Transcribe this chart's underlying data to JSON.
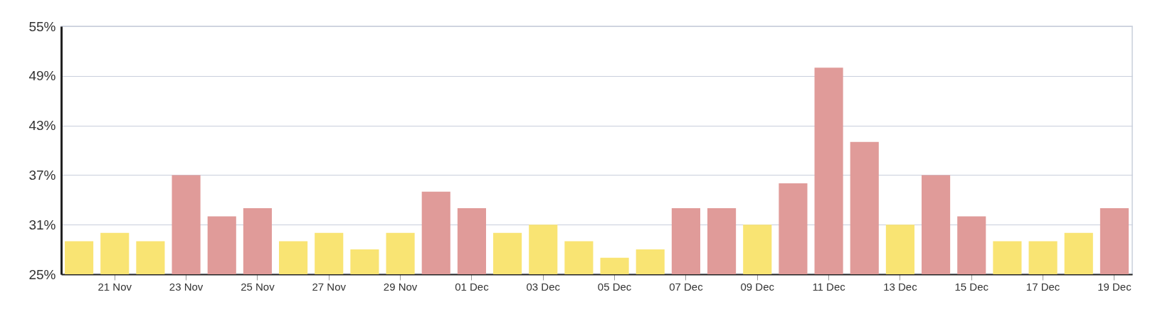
{
  "chart_data": {
    "type": "bar",
    "categories": [
      null,
      "21 Nov",
      null,
      "23 Nov",
      null,
      "25 Nov",
      null,
      "27 Nov",
      null,
      "29 Nov",
      null,
      "01 Dec",
      null,
      "03 Dec",
      null,
      "05 Dec",
      null,
      "07 Dec",
      null,
      "09 Dec",
      null,
      "11 Dec",
      null,
      "13 Dec",
      null,
      "15 Dec",
      null,
      "17 Dec",
      null,
      "19 Dec"
    ],
    "values": [
      29,
      30,
      29,
      37,
      32,
      33,
      29,
      30,
      28,
      30,
      35,
      33,
      30,
      31,
      29,
      27,
      28,
      33,
      33,
      31,
      36,
      50,
      41,
      31,
      37,
      32,
      29,
      29,
      30,
      33
    ],
    "colors": [
      "#f9e473",
      "#f9e473",
      "#f9e473",
      "#e09b99",
      "#e09b99",
      "#e09b99",
      "#f9e473",
      "#f9e473",
      "#f9e473",
      "#f9e473",
      "#e09b99",
      "#e09b99",
      "#f9e473",
      "#f9e473",
      "#f9e473",
      "#f9e473",
      "#f9e473",
      "#e09b99",
      "#e09b99",
      "#f9e473",
      "#e09b99",
      "#e09b99",
      "#e09b99",
      "#f9e473",
      "#e09b99",
      "#e09b99",
      "#f9e473",
      "#f9e473",
      "#f9e473",
      "#e09b99"
    ],
    "ylim": [
      25,
      55
    ],
    "yticks": [
      {
        "value": 25,
        "label": "25%"
      },
      {
        "value": 31,
        "label": "31%"
      },
      {
        "value": 37,
        "label": "37%"
      },
      {
        "value": 43,
        "label": "43%"
      },
      {
        "value": 49,
        "label": "49%"
      },
      {
        "value": 55,
        "label": "55%"
      }
    ],
    "grid": "y"
  }
}
